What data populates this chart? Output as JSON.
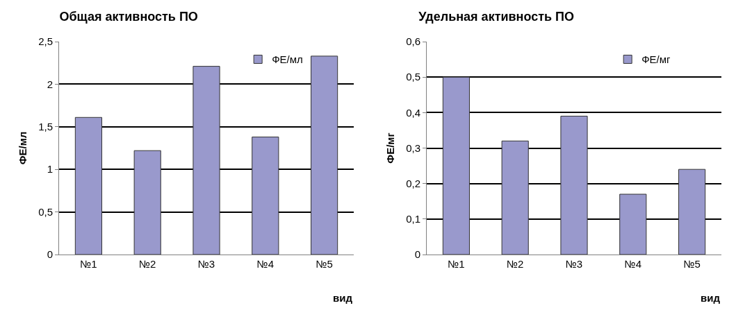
{
  "chart_data": [
    {
      "type": "bar",
      "title": "Общая активность ПО",
      "xlabel": "вид",
      "ylabel": "ФЕ/мл",
      "categories": [
        "№1",
        "№2",
        "№3",
        "№4",
        "№5"
      ],
      "series": [
        {
          "name": "ФЕ/мл",
          "color": "#9999cc",
          "values": [
            1.61,
            1.22,
            2.21,
            1.38,
            2.33
          ]
        }
      ],
      "ylim": [
        0,
        2.5
      ],
      "yticks": [
        0,
        {
          "value": 0.5,
          "label": "0,5"
        },
        1,
        {
          "value": 1.5,
          "label": "1,5"
        },
        2,
        {
          "value": 2.5,
          "label": "2,5"
        }
      ],
      "grid": "y",
      "legend": "top right"
    },
    {
      "type": "bar",
      "title": "Удельная активность ПО",
      "xlabel": "вид",
      "ylabel": "ФЕ/мг",
      "categories": [
        "№1",
        "№2",
        "№3",
        "№4",
        "№5"
      ],
      "series": [
        {
          "name": "ФЕ/мг",
          "color": "#9999cc",
          "values": [
            0.5,
            0.32,
            0.39,
            0.17,
            0.24
          ]
        }
      ],
      "ylim": [
        0,
        0.6
      ],
      "yticks": [
        0,
        {
          "value": 0.1,
          "label": "0,1"
        },
        {
          "value": 0.2,
          "label": "0,2"
        },
        {
          "value": 0.3,
          "label": "0,3"
        },
        {
          "value": 0.4,
          "label": "0,4"
        },
        {
          "value": 0.5,
          "label": "0,5"
        },
        {
          "value": 0.6,
          "label": "0,6"
        }
      ],
      "grid": "y",
      "legend": "top right"
    }
  ]
}
